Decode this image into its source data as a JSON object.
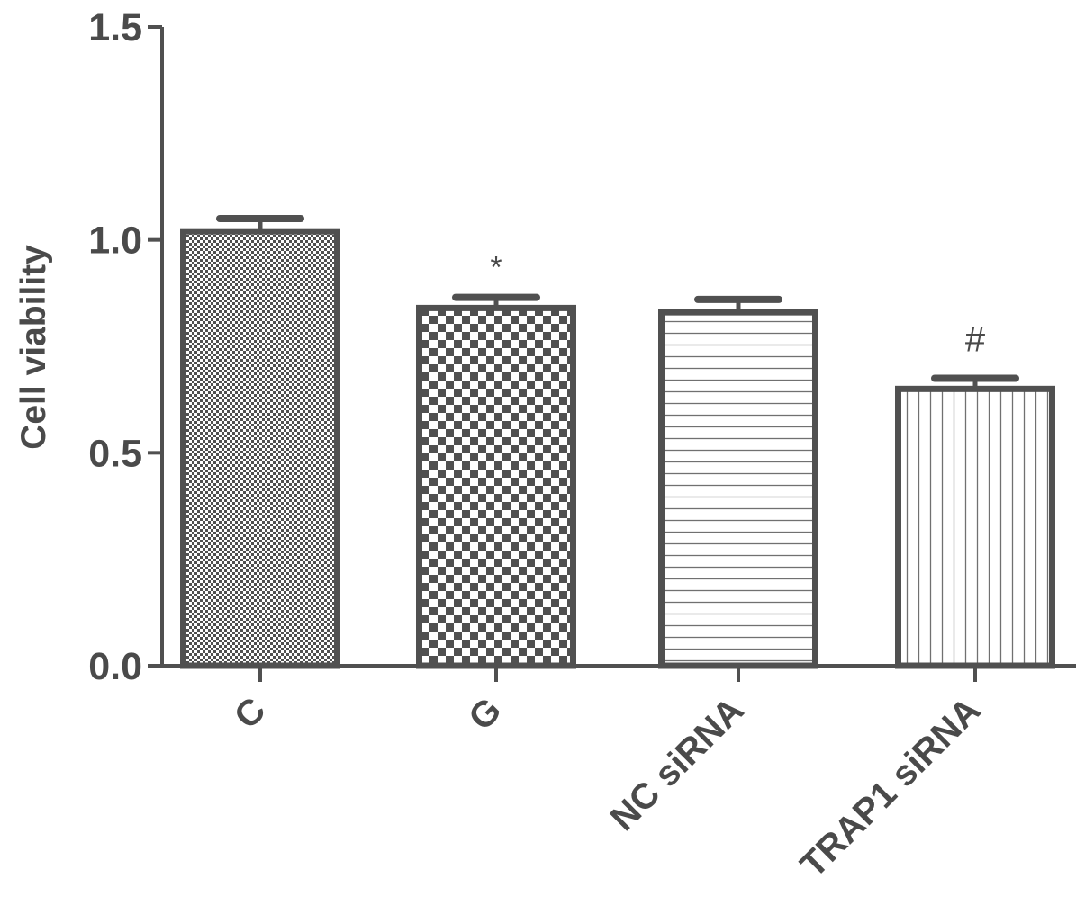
{
  "chart_data": {
    "type": "bar",
    "title": "",
    "xlabel": "",
    "ylabel": "Cell viability",
    "ylim": [
      0,
      1.5
    ],
    "yticks": [
      "0.0",
      "0.5",
      "1.0",
      "1.5"
    ],
    "categories": [
      "C",
      "G",
      "NC siRNA",
      "TRAP1 siRNA"
    ],
    "values": [
      1.02,
      0.84,
      0.83,
      0.65
    ],
    "errors": [
      0.03,
      0.025,
      0.03,
      0.025
    ],
    "annotations": [
      "",
      "*",
      "",
      "#"
    ],
    "patterns": [
      "fine-dots",
      "checker",
      "horizontal-lines",
      "vertical-lines"
    ],
    "grid": false,
    "colors": {
      "axis": "#505050",
      "bar_edge": "#505050",
      "pattern": "#505050",
      "text": "#4a4a4a"
    }
  }
}
